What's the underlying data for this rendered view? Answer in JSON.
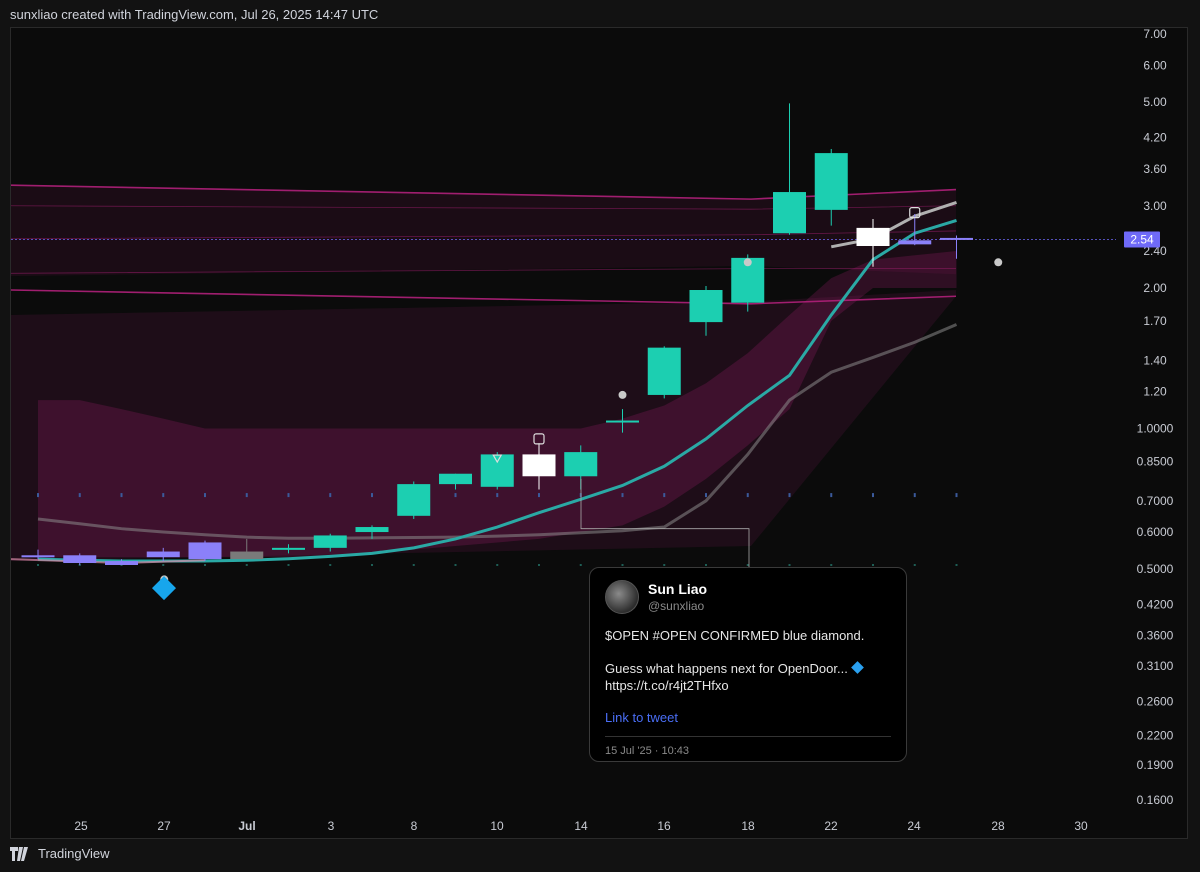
{
  "header": {
    "credit": "sunxliao created with TradingView.com, Jul 26, 2025 14:47 UTC"
  },
  "footer": {
    "brand": "TradingView"
  },
  "colors": {
    "bull": "#1ccfb1",
    "bear": "#ffffff",
    "neutral_blue": "#8b80f9",
    "neutral_grey": "#7a7a7a",
    "band": "#b0207a",
    "teal_line": "#2aa9a5",
    "grey_line": "#8a8a8a",
    "price_tag": "#6f6af8"
  },
  "chart_data": {
    "type": "candlestick",
    "ticker": "OPEN",
    "y_scale": "log",
    "y_ticks": [
      "7.00",
      "6.00",
      "5.00",
      "4.20",
      "3.60",
      "3.00",
      "2.40",
      "2.00",
      "1.70",
      "1.40",
      "1.20",
      "1.0000",
      "0.8500",
      "0.7000",
      "0.6000",
      "0.5000",
      "0.4200",
      "0.3600",
      "0.3100",
      "0.2600",
      "0.2200",
      "0.1900",
      "0.1600"
    ],
    "x_ticks": [
      "25",
      "27",
      "Jul",
      "3",
      "8",
      "10",
      "14",
      "16",
      "18",
      "22",
      "24",
      "28",
      "30"
    ],
    "last_price": "2.54",
    "candles": [
      {
        "date": "Jun 23",
        "open": 0.535,
        "high": 0.55,
        "low": 0.525,
        "close": 0.535,
        "color": "neutral_blue"
      },
      {
        "date": "Jun 24",
        "open": 0.535,
        "high": 0.54,
        "low": 0.51,
        "close": 0.515,
        "color": "neutral_blue"
      },
      {
        "date": "Jun 25",
        "open": 0.52,
        "high": 0.525,
        "low": 0.51,
        "close": 0.51,
        "color": "neutral_blue"
      },
      {
        "date": "Jun 26",
        "open": 0.53,
        "high": 0.555,
        "low": 0.52,
        "close": 0.545,
        "color": "neutral_blue"
      },
      {
        "date": "Jun 27",
        "open": 0.525,
        "high": 0.575,
        "low": 0.52,
        "close": 0.57,
        "color": "neutral_blue"
      },
      {
        "date": "Jun 30",
        "open": 0.545,
        "high": 0.58,
        "low": 0.53,
        "close": 0.525,
        "color": "neutral_grey"
      },
      {
        "date": "Jul 1",
        "open": 0.555,
        "high": 0.565,
        "low": 0.54,
        "close": 0.555,
        "color": "bull"
      },
      {
        "date": "Jul 2",
        "open": 0.555,
        "high": 0.595,
        "low": 0.545,
        "close": 0.59,
        "color": "bull"
      },
      {
        "date": "Jul 3",
        "open": 0.6,
        "high": 0.62,
        "low": 0.58,
        "close": 0.615,
        "color": "bull"
      },
      {
        "date": "Jul 7",
        "open": 0.65,
        "high": 0.77,
        "low": 0.64,
        "close": 0.76,
        "color": "bull"
      },
      {
        "date": "Jul 8",
        "open": 0.76,
        "high": 0.8,
        "low": 0.74,
        "close": 0.8,
        "color": "bull"
      },
      {
        "date": "Jul 9",
        "open": 0.75,
        "high": 0.89,
        "low": 0.74,
        "close": 0.88,
        "color": "bull"
      },
      {
        "date": "Jul 10",
        "open": 0.88,
        "high": 0.93,
        "low": 0.74,
        "close": 0.79,
        "color": "bear"
      },
      {
        "date": "Jul 11",
        "open": 0.79,
        "high": 0.92,
        "low": 0.74,
        "close": 0.89,
        "color": "bull"
      },
      {
        "date": "Jul 14",
        "open": 1.03,
        "high": 1.1,
        "low": 0.98,
        "close": 1.04,
        "color": "bull"
      },
      {
        "date": "Jul 15",
        "open": 1.18,
        "high": 1.5,
        "low": 1.16,
        "close": 1.49,
        "color": "bull"
      },
      {
        "date": "Jul 16",
        "open": 1.69,
        "high": 2.02,
        "low": 1.58,
        "close": 1.98,
        "color": "bull"
      },
      {
        "date": "Jul 17",
        "open": 1.86,
        "high": 2.36,
        "low": 1.78,
        "close": 2.32,
        "color": "bull"
      },
      {
        "date": "Jul 18",
        "open": 2.62,
        "high": 4.97,
        "low": 2.6,
        "close": 3.21,
        "color": "bull"
      },
      {
        "date": "Jul 21",
        "open": 2.94,
        "high": 3.97,
        "low": 2.72,
        "close": 3.89,
        "color": "bull"
      },
      {
        "date": "Jul 22",
        "open": 2.69,
        "high": 2.81,
        "low": 2.22,
        "close": 2.46,
        "color": "bear"
      },
      {
        "date": "Jul 23",
        "open": 2.53,
        "high": 2.88,
        "low": 2.47,
        "close": 2.48,
        "color": "neutral_blue"
      },
      {
        "date": "Jul 24",
        "open": 2.56,
        "high": 2.59,
        "low": 2.31,
        "close": 2.54,
        "color": "neutral_blue"
      }
    ],
    "teal_line": [
      0.525,
      0.522,
      0.52,
      0.52,
      0.52,
      0.522,
      0.526,
      0.532,
      0.54,
      0.555,
      0.58,
      0.615,
      0.66,
      0.705,
      0.755,
      0.83,
      0.95,
      1.12,
      1.3,
      1.75,
      2.3,
      2.62,
      2.79
    ],
    "grey_line": [
      0.64,
      0.625,
      0.61,
      0.6,
      0.592,
      0.585,
      0.582,
      0.582,
      0.583,
      0.584,
      0.585,
      0.588,
      0.592,
      0.598,
      0.604,
      0.615,
      0.7,
      0.88,
      1.15,
      1.32,
      1.42,
      1.53,
      1.67
    ],
    "series": [
      {
        "name": "Sun Liao",
        "values": []
      }
    ]
  },
  "tweet": {
    "name": "Sun Liao",
    "handle": "@sunxliao",
    "line1": "$OPEN #OPEN CONFIRMED blue diamond.",
    "line2": "Guess what happens next for OpenDoor...",
    "line3": "https://t.co/r4jt2THfxo",
    "link": "Link to tweet",
    "date": "15 Jul '25 · 10:43"
  }
}
